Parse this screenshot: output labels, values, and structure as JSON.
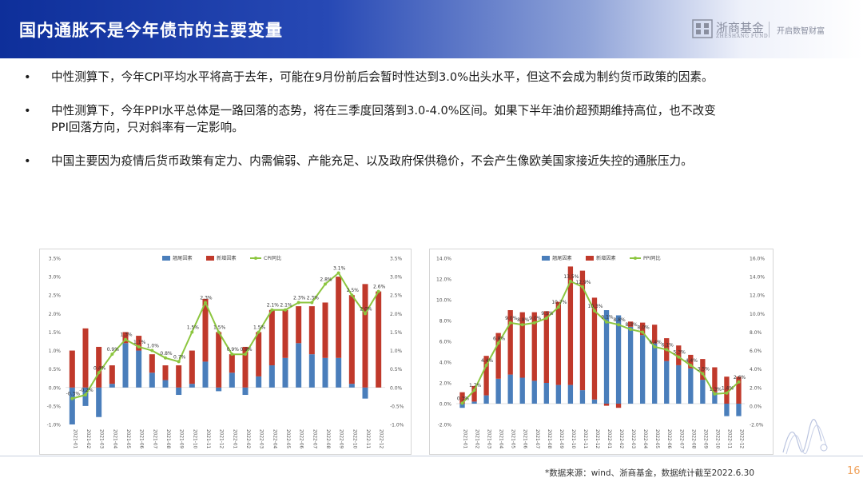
{
  "header": {
    "title": "国内通胀不是今年债市的主要变量",
    "brand_cn": "浙商基金",
    "brand_en": "ZHESHANG FUND",
    "slogan": "开启数智财富"
  },
  "bullets": [
    {
      "marker": "•",
      "text": "中性测算下，今年CPI平均水平将高于去年，可能在9月份前后会暂时性达到3.0%出头水平，但这不会成为制约货币政策的因素。"
    },
    {
      "marker": "•",
      "text": "中性测算下，今年PPI水平总体是一路回落的态势，将在三季度回落到3.0-4.0%区间。如果下半年油价超预期维持高位，也不改变PPI回落方向，只对斜率有一定影响。"
    },
    {
      "marker": "•",
      "text": "中国主要因为疫情后货币政策有定力、内需偏弱、产能充足、以及政府保供稳价，不会产生像欧美国家接近失控的通胀压力。"
    }
  ],
  "footer": {
    "source": "*数据来源：wind、浙商基金，数据统计截至2022.6.30",
    "page": "16"
  },
  "colors": {
    "tail": "#4a7ebb",
    "new": "#c0392b",
    "line": "#8cc63f",
    "header_start": "#0e2f9a",
    "page_number": "#f0a35e"
  },
  "chart_data": [
    {
      "type": "bar",
      "stacked": true,
      "categories": [
        "2021-01",
        "2021-02",
        "2021-03",
        "2021-04",
        "2021-05",
        "2021-06",
        "2021-07",
        "2021-08",
        "2021-09",
        "2021-10",
        "2021-11",
        "2021-12",
        "2022-01",
        "2022-02",
        "2022-03",
        "2022-04",
        "2022-05",
        "2022-06",
        "2022-07",
        "2022-08",
        "2022-09",
        "2022-10",
        "2022-11",
        "2022-12"
      ],
      "series": [
        {
          "name": "翘尾因素",
          "kind": "bar",
          "values": [
            -1.0,
            -0.5,
            -0.8,
            0.1,
            1.2,
            1.0,
            0.4,
            0.2,
            -0.2,
            0.1,
            0.7,
            -0.1,
            0.4,
            -0.2,
            0.3,
            0.6,
            0.8,
            1.2,
            0.9,
            0.8,
            0.8,
            0.1,
            -0.3,
            0
          ]
        },
        {
          "name": "新增因素",
          "kind": "bar",
          "values": [
            1.0,
            1.6,
            1.1,
            0.5,
            0.3,
            0.4,
            0.5,
            0.4,
            0.6,
            0.9,
            1.7,
            1.5,
            0.5,
            1.1,
            1.2,
            1.5,
            1.3,
            1.0,
            1.3,
            1.5,
            2.2,
            2.4,
            2.8,
            2.6
          ]
        },
        {
          "name": "CPI同比",
          "kind": "line",
          "values": [
            -0.3,
            -0.2,
            0.4,
            0.9,
            1.3,
            1.1,
            1.0,
            0.8,
            0.7,
            1.5,
            2.3,
            1.5,
            0.9,
            0.9,
            1.5,
            2.1,
            2.1,
            2.3,
            2.3,
            2.8,
            3.1,
            2.5,
            2.0,
            2.6
          ],
          "labels": [
            "-0.3%",
            "-0.2%",
            "0.4%",
            "0.9%",
            "1.3%",
            "1.1%",
            "1.0%",
            "0.8%",
            "0.7%",
            "1.5%",
            "2.3%",
            "1.5%",
            "0.9%",
            "0.9%",
            "1.5%",
            "2.1%",
            "2.1%",
            "2.3%",
            "2.3%",
            "2.8%",
            "3.1%",
            "2.5%",
            "2.0%",
            "2.6%"
          ]
        }
      ],
      "ylim": [
        -1.0,
        3.5
      ],
      "yticks": [
        "-1.0%",
        "-0.5%",
        "0.0%",
        "0.5%",
        "1.0%",
        "1.5%",
        "2.0%",
        "2.5%",
        "3.0%",
        "3.5%"
      ],
      "ytick_values": [
        -1.0,
        -0.5,
        0.0,
        0.5,
        1.0,
        1.5,
        2.0,
        2.5,
        3.0,
        3.5
      ],
      "secondary_axis": true,
      "legend_position": "top",
      "grid": false
    },
    {
      "type": "bar",
      "stacked": true,
      "categories": [
        "2021-01",
        "2021-02",
        "2021-03",
        "2021-04",
        "2021-05",
        "2021-06",
        "2021-07",
        "2021-08",
        "2021-09",
        "2021-10",
        "2021-11",
        "2021-12",
        "2022-01",
        "2022-02",
        "2022-03",
        "2022-04",
        "2022-05",
        "2022-06",
        "2022-07",
        "2022-08",
        "2022-09",
        "2022-10",
        "2022-11",
        "2022-12"
      ],
      "series": [
        {
          "name": "翘尾因素",
          "kind": "bar",
          "values": [
            -0.4,
            0.2,
            0.8,
            2.4,
            2.8,
            2.5,
            2.2,
            2.0,
            1.8,
            1.8,
            1.3,
            0.4,
            9.0,
            8.5,
            7.4,
            6.6,
            5.8,
            4.1,
            3.7,
            3.4,
            2.3,
            1.1,
            -1.2,
            -1.2
          ]
        },
        {
          "name": "新增因素",
          "kind": "bar",
          "values": [
            1.1,
            1.5,
            3.8,
            4.4,
            6.2,
            6.3,
            6.6,
            6.9,
            8.0,
            11.4,
            11.5,
            9.8,
            -0.2,
            -0.4,
            0.5,
            1.2,
            1.8,
            2.2,
            1.9,
            1.3,
            2.0,
            2.4,
            2.6,
            2.6
          ]
        },
        {
          "name": "PPI同比",
          "kind": "line",
          "values": [
            0.3,
            1.7,
            4.4,
            6.8,
            9.0,
            8.8,
            9.0,
            9.5,
            10.7,
            13.5,
            12.9,
            10.3,
            9.1,
            8.8,
            8.3,
            8.0,
            6.4,
            6.1,
            5.3,
            4.4,
            3.5,
            1.3,
            1.4,
            2.6
          ],
          "labels": [
            "0.3%",
            "1.7%",
            "4.4%",
            "6.8%",
            "9.0%",
            "8.8%",
            "9.0%",
            "9.5%",
            "10.7%",
            "13.5%",
            "12.9%",
            "10.3%",
            "9.1%",
            "8.8%",
            "8.3%",
            "8.0%",
            "6.4%",
            "6.1%",
            "5.3%",
            "4.4%",
            "3.5%",
            "1.3%",
            "1.4%",
            "2.6%"
          ]
        }
      ],
      "ylim": [
        -2.0,
        14.0
      ],
      "yticks": [
        "-2.0%",
        "0.0%",
        "2.0%",
        "4.0%",
        "6.0%",
        "8.0%",
        "10.0%",
        "12.0%",
        "14.0%"
      ],
      "ytick_values": [
        -2.0,
        0.0,
        2.0,
        4.0,
        6.0,
        8.0,
        10.0,
        12.0,
        14.0
      ],
      "secondary_ylim": [
        -2.0,
        16.0
      ],
      "secondary_yticks": [
        "-2.0%",
        "0.0%",
        "2.0%",
        "4.0%",
        "6.0%",
        "8.0%",
        "10.0%",
        "12.0%",
        "14.0%",
        "16.0%"
      ],
      "secondary_ytick_values": [
        -2.0,
        0.0,
        2.0,
        4.0,
        6.0,
        8.0,
        10.0,
        12.0,
        14.0,
        16.0
      ],
      "legend_position": "top",
      "grid": false
    }
  ]
}
